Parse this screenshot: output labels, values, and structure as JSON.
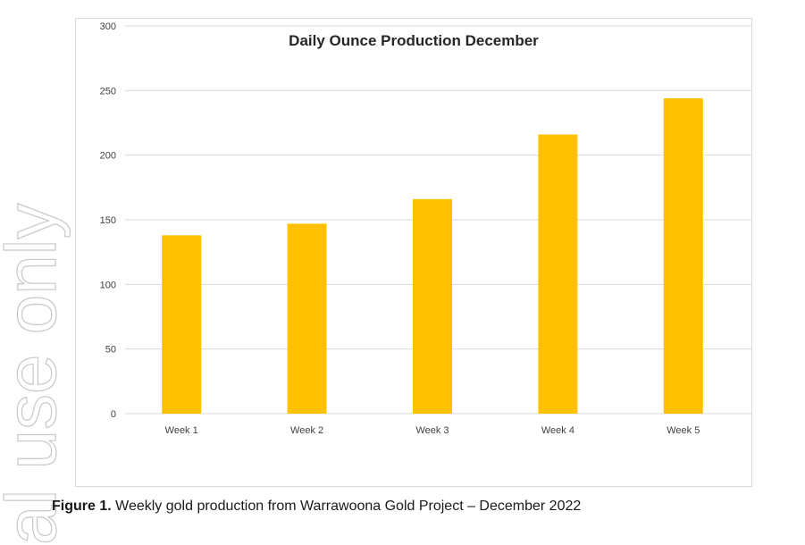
{
  "watermark": {
    "text": "al use only"
  },
  "chart_data": {
    "type": "bar",
    "title": "Daily Ounce Production December",
    "categories": [
      "Week 1",
      "Week 2",
      "Week 3",
      "Week 4",
      "Week 5"
    ],
    "values": [
      138,
      147,
      166,
      216,
      244
    ],
    "ylim": [
      0,
      300
    ],
    "yticks": [
      0,
      50,
      100,
      150,
      200,
      250,
      300
    ],
    "grid": true,
    "legend": "none",
    "bar_color": "#FFC000"
  },
  "caption": {
    "label": "Figure 1.",
    "text": " Weekly gold production from Warrawoona Gold Project – December 2022"
  }
}
